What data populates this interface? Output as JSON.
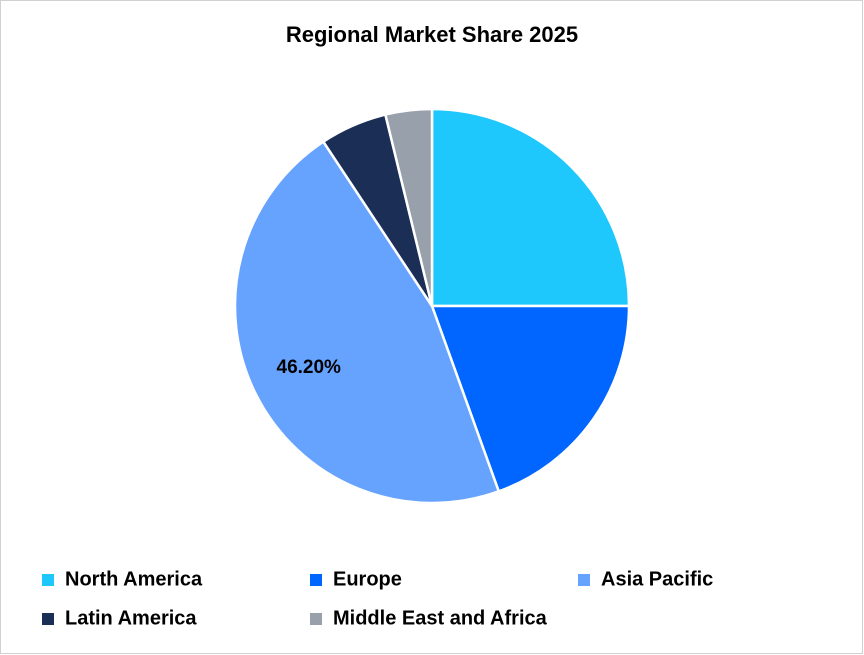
{
  "chart_data": {
    "type": "pie",
    "title": "Regional Market Share 2025",
    "categories": [
      "North America",
      "Europe",
      "Asia Pacific",
      "Latin America",
      "Middle East and Africa"
    ],
    "values": [
      25,
      19.5,
      46.2,
      5.5,
      3.8
    ],
    "value_labels": [
      null,
      null,
      "46.20%",
      null,
      null
    ],
    "colors": [
      "#1fc8fc",
      "#0066ff",
      "#66a3ff",
      "#1b2f56",
      "#98a0ab"
    ]
  }
}
